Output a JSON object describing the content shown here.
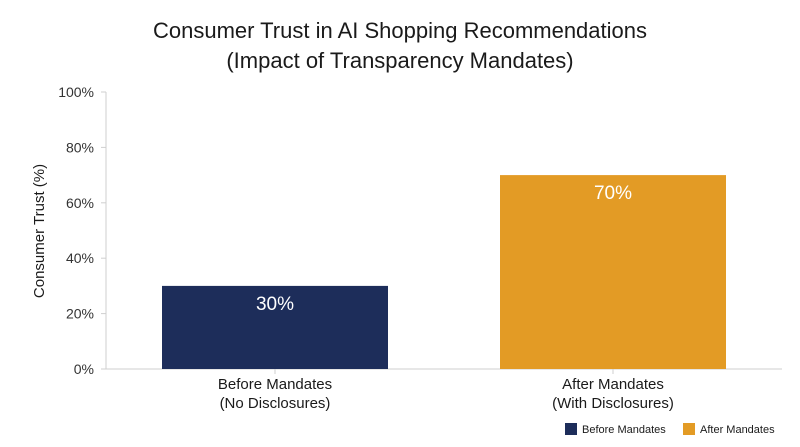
{
  "chart_data": {
    "type": "bar",
    "title_lines": [
      "Consumer Trust in AI Shopping Recommendations",
      "(Impact of Transparency Mandates)"
    ],
    "ylabel": "Consumer Trust (%)",
    "xlabel": "",
    "ylim": [
      0,
      100
    ],
    "yticks": [
      0,
      20,
      40,
      60,
      80,
      100
    ],
    "ytick_labels": [
      "0%",
      "20%",
      "40%",
      "60%",
      "80%",
      "100%"
    ],
    "categories": [
      [
        "Before Mandates",
        "(No Disclosures)"
      ],
      [
        "After Mandates",
        "(With Disclosures)"
      ]
    ],
    "values": [
      30,
      70
    ],
    "data_labels": [
      "30%",
      "70%"
    ],
    "colors": [
      "#1d2d5a",
      "#e39b25"
    ],
    "legend": {
      "placement": "bottom-right",
      "items": [
        {
          "label": "Before Mandates",
          "color": "#1d2d5a"
        },
        {
          "label": "After Mandates",
          "color": "#e39b25"
        }
      ]
    },
    "grid": false
  }
}
